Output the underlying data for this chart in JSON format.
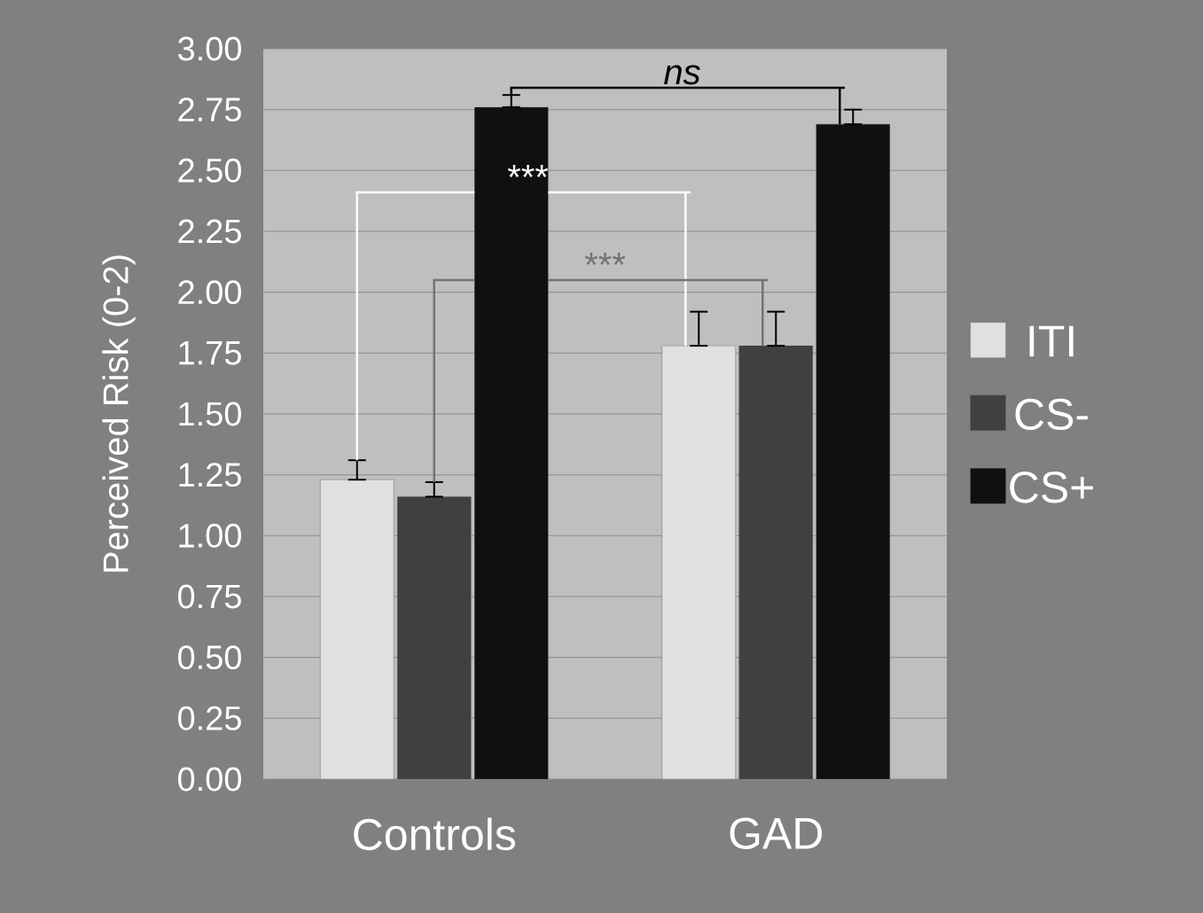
{
  "chart_data": {
    "type": "bar",
    "ylabel": "Perceived Risk (0-2)",
    "categories": [
      "Controls",
      "GAD"
    ],
    "series": [
      {
        "name": "ITI",
        "color": "#e0e0e0",
        "values": [
          1.23,
          1.78
        ],
        "errors": [
          [
            1.23,
            1.31
          ],
          [
            1.78,
            1.92
          ]
        ]
      },
      {
        "name": "CS-",
        "color": "#404040",
        "values": [
          1.16,
          1.78
        ],
        "errors": [
          [
            1.16,
            1.22
          ],
          [
            1.78,
            1.92
          ]
        ]
      },
      {
        "name": "CS+",
        "color": "#101010",
        "values": [
          2.76,
          2.69
        ],
        "errors": [
          [
            2.76,
            2.81
          ],
          [
            2.69,
            2.75
          ]
        ]
      }
    ],
    "ylim": [
      0,
      3
    ],
    "yticks": [
      {
        "value": 0,
        "label": "0.00"
      },
      {
        "value": 0.25,
        "label": "0.25"
      },
      {
        "value": 0.5,
        "label": "0.50"
      },
      {
        "value": 0.75,
        "label": "0.75"
      },
      {
        "value": 1,
        "label": "1.00"
      },
      {
        "value": 1.25,
        "label": "1.25"
      },
      {
        "value": 1.5,
        "label": "1.50"
      },
      {
        "value": 1.75,
        "label": "1.75"
      },
      {
        "value": 2,
        "label": "2.00"
      },
      {
        "value": 2.25,
        "label": "2.25"
      },
      {
        "value": 2.5,
        "label": "2.50"
      },
      {
        "value": 2.75,
        "label": "2.75"
      },
      {
        "value": 3,
        "label": "3.00"
      }
    ],
    "grid": "y",
    "legend": "right",
    "annotations": [
      "***",
      "***",
      "*ns*"
    ]
  }
}
